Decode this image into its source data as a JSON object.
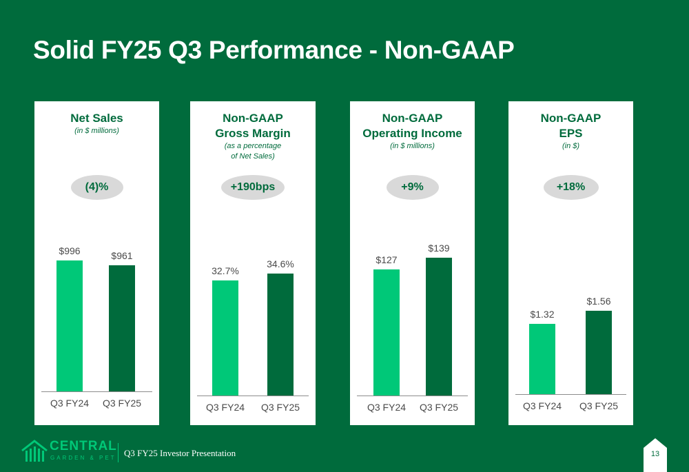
{
  "slide": {
    "title": "Solid FY25 Q3 Performance - Non-GAAP",
    "footer": "Q3 FY25 Investor Presentation",
    "page_number": "13",
    "logo": {
      "name": "CENTRAL",
      "sub": "GARDEN & PET"
    }
  },
  "colors": {
    "background": "#006b3c",
    "bar_fy24": "#00c878",
    "bar_fy25": "#006b3c",
    "pill": "#d9d9d9"
  },
  "chart_data": [
    {
      "type": "bar",
      "title": "Net Sales",
      "subtitle": "(in $ millions)",
      "change": "(4)%",
      "categories": [
        "Q3 FY24",
        "Q3 FY25"
      ],
      "values": [
        996,
        961
      ],
      "labels": [
        "$996",
        "$961"
      ]
    },
    {
      "type": "bar",
      "title": "Non-GAAP\nGross Margin",
      "subtitle": "(as a percentage\nof Net Sales)",
      "change": "+190bps",
      "categories": [
        "Q3 FY24",
        "Q3 FY25"
      ],
      "values": [
        32.7,
        34.6
      ],
      "labels": [
        "32.7%",
        "34.6%"
      ]
    },
    {
      "type": "bar",
      "title": "Non-GAAP\nOperating Income",
      "subtitle": "(in $ millions)",
      "change": "+9%",
      "categories": [
        "Q3 FY24",
        "Q3 FY25"
      ],
      "values": [
        127,
        139
      ],
      "labels": [
        "$127",
        "$139"
      ]
    },
    {
      "type": "bar",
      "title": "Non-GAAP\nEPS",
      "subtitle": "(in $)",
      "change": "+18%",
      "categories": [
        "Q3 FY24",
        "Q3 FY25"
      ],
      "values": [
        1.32,
        1.56
      ],
      "labels": [
        "$1.32",
        "$1.56"
      ]
    }
  ]
}
